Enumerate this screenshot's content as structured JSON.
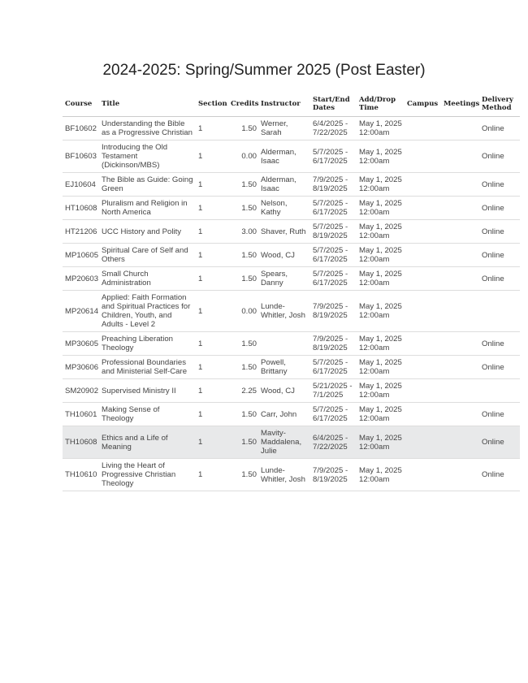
{
  "title": "2024-2025: Spring/Summer 2025 (Post Easter)",
  "columns": [
    "Course",
    "Title",
    "Section",
    "Credits",
    "Instructor",
    "Start/End Dates",
    "Add/Drop Time",
    "Campus",
    "Meetings",
    "Delivery Method"
  ],
  "rows": [
    {
      "course": "BF10602",
      "title": "Understanding the Bible as a Progressive Christian",
      "section": "1",
      "credits": "1.50",
      "instructor": "Werner, Sarah",
      "dates": "6/4/2025 - 7/22/2025",
      "adddrop": "May 1, 2025 12:00am",
      "campus": "",
      "meetings": "",
      "delivery": "Online"
    },
    {
      "course": "BF10603",
      "title": "Introducing the Old Testament (Dickinson/MBS)",
      "section": "1",
      "credits": "0.00",
      "instructor": "Alderman, Isaac",
      "dates": "5/7/2025 - 6/17/2025",
      "adddrop": "May 1, 2025 12:00am",
      "campus": "",
      "meetings": "",
      "delivery": "Online"
    },
    {
      "course": "EJ10604",
      "title": "The Bible as Guide: Going Green",
      "section": "1",
      "credits": "1.50",
      "instructor": "Alderman, Isaac",
      "dates": "7/9/2025 - 8/19/2025",
      "adddrop": "May 1, 2025 12:00am",
      "campus": "",
      "meetings": "",
      "delivery": "Online"
    },
    {
      "course": "HT10608",
      "title": "Pluralism and Religion in North America",
      "section": "1",
      "credits": "1.50",
      "instructor": "Nelson, Kathy",
      "dates": "5/7/2025 - 6/17/2025",
      "adddrop": "May 1, 2025 12:00am",
      "campus": "",
      "meetings": "",
      "delivery": "Online"
    },
    {
      "course": "HT21206",
      "title": "UCC History and Polity",
      "section": "1",
      "credits": "3.00",
      "instructor": "Shaver, Ruth",
      "dates": "5/7/2025 - 8/19/2025",
      "adddrop": "May 1, 2025 12:00am",
      "campus": "",
      "meetings": "",
      "delivery": "Online"
    },
    {
      "course": "MP10605",
      "title": "Spiritual Care of Self and Others",
      "section": "1",
      "credits": "1.50",
      "instructor": "Wood, CJ",
      "dates": "5/7/2025 - 6/17/2025",
      "adddrop": "May 1, 2025 12:00am",
      "campus": "",
      "meetings": "",
      "delivery": "Online"
    },
    {
      "course": "MP20603",
      "title": "Small Church Administration",
      "section": "1",
      "credits": "1.50",
      "instructor": "Spears, Danny",
      "dates": "5/7/2025 - 6/17/2025",
      "adddrop": "May 1, 2025 12:00am",
      "campus": "",
      "meetings": "",
      "delivery": "Online"
    },
    {
      "course": "MP20614",
      "title": "Applied: Faith Formation and Spiritual Practices for Children, Youth, and Adults - Level 2",
      "section": "1",
      "credits": "0.00",
      "instructor": "Lunde-Whitler, Josh",
      "dates": "7/9/2025 - 8/19/2025",
      "adddrop": "May 1, 2025 12:00am",
      "campus": "",
      "meetings": "",
      "delivery": ""
    },
    {
      "course": "MP30605",
      "title": "Preaching Liberation Theology",
      "section": "1",
      "credits": "1.50",
      "instructor": "",
      "dates": "7/9/2025 - 8/19/2025",
      "adddrop": "May 1, 2025 12:00am",
      "campus": "",
      "meetings": "",
      "delivery": "Online"
    },
    {
      "course": "MP30606",
      "title": "Professional Boundaries and Ministerial Self-Care",
      "section": "1",
      "credits": "1.50",
      "instructor": "Powell, Brittany",
      "dates": "5/7/2025 - 6/17/2025",
      "adddrop": "May 1, 2025 12:00am",
      "campus": "",
      "meetings": "",
      "delivery": "Online"
    },
    {
      "course": "SM20902",
      "title": "Supervised Ministry II",
      "section": "1",
      "credits": "2.25",
      "instructor": "Wood, CJ",
      "dates": "5/21/2025 - 7/1/2025",
      "adddrop": "May 1, 2025 12:00am",
      "campus": "",
      "meetings": "",
      "delivery": ""
    },
    {
      "course": "TH10601",
      "title": "Making Sense of Theology",
      "section": "1",
      "credits": "1.50",
      "instructor": "Carr, John",
      "dates": "5/7/2025 - 6/17/2025",
      "adddrop": "May 1, 2025 12:00am",
      "campus": "",
      "meetings": "",
      "delivery": "Online"
    },
    {
      "course": "TH10608",
      "title": "Ethics and a Life of Meaning",
      "section": "1",
      "credits": "1.50",
      "instructor": "Mavity-Maddalena, Julie",
      "dates": "6/4/2025 - 7/22/2025",
      "adddrop": "May 1, 2025 12:00am",
      "campus": "",
      "meetings": "",
      "delivery": "Online",
      "highlighted": true
    },
    {
      "course": "TH10610",
      "title": "Living the Heart of Progressive Christian Theology",
      "section": "1",
      "credits": "1.50",
      "instructor": "Lunde-Whitler, Josh",
      "dates": "7/9/2025 - 8/19/2025",
      "adddrop": "May 1, 2025 12:00am",
      "campus": "",
      "meetings": "",
      "delivery": "Online"
    }
  ],
  "colors": {
    "highlight_row": "#e8e9ea",
    "border": "#dddddd"
  }
}
